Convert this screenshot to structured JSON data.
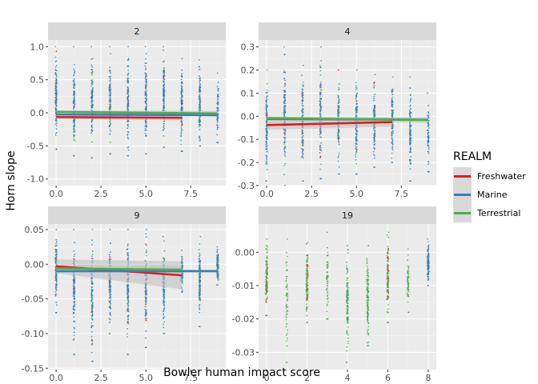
{
  "chart_data": {
    "type": "scatter",
    "facet_variable_values": [
      "2",
      "4",
      "9",
      "19"
    ],
    "xlabel": "Bowler human impact score",
    "ylabel": "Horn slope",
    "legend": {
      "title": "REALM",
      "placement": "right",
      "entries": [
        "Freshwater",
        "Marine",
        "Terrestrial"
      ]
    },
    "colors": {
      "Freshwater": "#e41a1c",
      "Marine": "#377eb8",
      "Terrestrial": "#4daf4a",
      "panel_bg": "#ebebeb",
      "strip_bg": "#d9d9d9",
      "ribbon": "#bfbfbf"
    },
    "facets": [
      {
        "label": "2",
        "xlim": [
          -0.45,
          9.45
        ],
        "ylim": [
          -1.1,
          1.1
        ],
        "xticks": [
          0,
          2.5,
          5,
          7.5
        ],
        "xtick_labels": [
          "0.0",
          "2.5",
          "5.0",
          "7.5"
        ],
        "yticks": [
          -1,
          -0.5,
          0,
          0.5,
          1
        ],
        "ytick_labels": [
          "-1.0",
          "-0.5",
          "0.0",
          "0.5",
          "1.0"
        ],
        "xgrid": [
          0,
          1,
          2,
          3,
          4,
          5,
          6,
          7,
          8,
          9
        ],
        "point_clusters": [
          {
            "x": 0,
            "ymin": -0.55,
            "ymax": 1.0,
            "realms": [
              "Marine",
              "Terrestrial",
              "Freshwater"
            ]
          },
          {
            "x": 1,
            "ymin": -0.65,
            "ymax": 1.0,
            "realms": [
              "Marine",
              "Terrestrial",
              "Freshwater"
            ]
          },
          {
            "x": 2,
            "ymin": -0.68,
            "ymax": 1.0,
            "realms": [
              "Marine",
              "Terrestrial",
              "Freshwater"
            ]
          },
          {
            "x": 3,
            "ymin": -0.62,
            "ymax": 1.0,
            "realms": [
              "Marine",
              "Terrestrial",
              "Freshwater"
            ]
          },
          {
            "x": 4,
            "ymin": -0.65,
            "ymax": 1.0,
            "realms": [
              "Marine",
              "Terrestrial",
              "Freshwater"
            ]
          },
          {
            "x": 5,
            "ymin": -0.62,
            "ymax": 1.0,
            "realms": [
              "Marine",
              "Terrestrial",
              "Freshwater"
            ]
          },
          {
            "x": 6,
            "ymin": -0.52,
            "ymax": 1.0,
            "realms": [
              "Marine",
              "Terrestrial",
              "Freshwater"
            ]
          },
          {
            "x": 7,
            "ymin": -0.58,
            "ymax": 0.82,
            "realms": [
              "Marine",
              "Terrestrial",
              "Freshwater"
            ]
          },
          {
            "x": 8,
            "ymin": -0.5,
            "ymax": 0.8,
            "realms": [
              "Marine",
              "Terrestrial"
            ]
          },
          {
            "x": 9,
            "ymin": -0.45,
            "ymax": 0.6,
            "realms": [
              "Marine"
            ]
          }
        ],
        "fits": [
          {
            "realm": "Freshwater",
            "x": [
              0,
              7
            ],
            "y": [
              -0.065,
              -0.075
            ],
            "se": [
              0.025,
              0.04
            ]
          },
          {
            "realm": "Marine",
            "x": [
              0,
              9
            ],
            "y": [
              -0.025,
              -0.035
            ],
            "se": [
              0.01,
              0.015
            ]
          },
          {
            "realm": "Terrestrial",
            "x": [
              0,
              9
            ],
            "y": [
              0.015,
              -0.01
            ],
            "se": [
              0.02,
              0.04
            ]
          }
        ]
      },
      {
        "label": "4",
        "xlim": [
          -0.45,
          9.45
        ],
        "ylim": [
          -0.3,
          0.33
        ],
        "xticks": [
          0,
          2.5,
          5,
          7.5
        ],
        "xtick_labels": [
          "0.0",
          "2.5",
          "5.0",
          "7.5"
        ],
        "yticks": [
          -0.3,
          -0.2,
          -0.1,
          0,
          0.1,
          0.2,
          0.3
        ],
        "ytick_labels": [
          "-0.3",
          "-0.2",
          "-0.1",
          "0.0",
          "0.1",
          "0.2",
          "0.3"
        ],
        "xgrid": [
          0,
          1,
          2,
          3,
          4,
          5,
          6,
          7,
          8,
          9
        ],
        "point_clusters": [
          {
            "x": 0,
            "ymin": -0.28,
            "ymax": 0.2,
            "realms": [
              "Marine",
              "Terrestrial",
              "Freshwater"
            ]
          },
          {
            "x": 1,
            "ymin": -0.3,
            "ymax": 0.3,
            "realms": [
              "Marine",
              "Terrestrial",
              "Freshwater"
            ]
          },
          {
            "x": 2,
            "ymin": -0.28,
            "ymax": 0.22,
            "realms": [
              "Marine",
              "Terrestrial",
              "Freshwater"
            ]
          },
          {
            "x": 3,
            "ymin": -0.27,
            "ymax": 0.3,
            "realms": [
              "Marine",
              "Terrestrial",
              "Freshwater"
            ]
          },
          {
            "x": 4,
            "ymin": -0.25,
            "ymax": 0.2,
            "realms": [
              "Marine",
              "Terrestrial",
              "Freshwater"
            ]
          },
          {
            "x": 5,
            "ymin": -0.25,
            "ymax": 0.2,
            "realms": [
              "Marine",
              "Terrestrial",
              "Freshwater"
            ]
          },
          {
            "x": 6,
            "ymin": -0.22,
            "ymax": 0.18,
            "realms": [
              "Marine",
              "Terrestrial",
              "Freshwater"
            ]
          },
          {
            "x": 7,
            "ymin": -0.2,
            "ymax": 0.17,
            "realms": [
              "Marine",
              "Terrestrial"
            ]
          },
          {
            "x": 8,
            "ymin": -0.28,
            "ymax": 0.17,
            "realms": [
              "Marine",
              "Terrestrial"
            ]
          },
          {
            "x": 9,
            "ymin": -0.24,
            "ymax": 0.1,
            "realms": [
              "Marine"
            ]
          }
        ],
        "fits": [
          {
            "realm": "Freshwater",
            "x": [
              0,
              7
            ],
            "y": [
              -0.038,
              -0.025
            ],
            "se": [
              0.02,
              0.02
            ]
          },
          {
            "realm": "Marine",
            "x": [
              0,
              9
            ],
            "y": [
              -0.012,
              -0.015
            ],
            "se": [
              0.005,
              0.007
            ]
          },
          {
            "realm": "Terrestrial",
            "x": [
              0,
              9
            ],
            "y": [
              -0.008,
              -0.016
            ],
            "se": [
              0.008,
              0.012
            ]
          }
        ]
      },
      {
        "label": "9",
        "xlim": [
          -0.45,
          9.45
        ],
        "ylim": [
          -0.152,
          0.058
        ],
        "xticks": [
          0,
          2.5,
          5,
          7.5
        ],
        "xtick_labels": [
          "0.0",
          "2.5",
          "5.0",
          "7.5"
        ],
        "yticks": [
          -0.15,
          -0.1,
          -0.05,
          0,
          0.05
        ],
        "ytick_labels": [
          "-0.15",
          "-0.10",
          "-0.05",
          "0.00",
          "0.05"
        ],
        "xgrid": [
          0,
          1,
          2,
          3,
          4,
          5,
          6,
          7,
          8,
          9
        ],
        "point_clusters": [
          {
            "x": 0,
            "ymin": -0.07,
            "ymax": 0.05,
            "realms": [
              "Marine",
              "Terrestrial",
              "Freshwater"
            ]
          },
          {
            "x": 1,
            "ymin": -0.13,
            "ymax": 0.05,
            "realms": [
              "Marine",
              "Terrestrial",
              "Freshwater"
            ]
          },
          {
            "x": 2,
            "ymin": -0.14,
            "ymax": 0.05,
            "realms": [
              "Marine",
              "Terrestrial",
              "Freshwater"
            ]
          },
          {
            "x": 3,
            "ymin": -0.1,
            "ymax": 0.05,
            "realms": [
              "Marine",
              "Terrestrial",
              "Freshwater"
            ]
          },
          {
            "x": 4,
            "ymin": -0.13,
            "ymax": 0.05,
            "realms": [
              "Marine",
              "Terrestrial",
              "Freshwater"
            ]
          },
          {
            "x": 5,
            "ymin": -0.12,
            "ymax": 0.05,
            "realms": [
              "Marine",
              "Terrestrial",
              "Freshwater"
            ]
          },
          {
            "x": 6,
            "ymin": -0.1,
            "ymax": 0.04,
            "realms": [
              "Marine",
              "Terrestrial"
            ]
          },
          {
            "x": 7,
            "ymin": -0.04,
            "ymax": 0.02,
            "realms": [
              "Marine",
              "Terrestrial"
            ]
          },
          {
            "x": 8,
            "ymin": -0.09,
            "ymax": 0.04,
            "realms": [
              "Marine",
              "Terrestrial"
            ]
          },
          {
            "x": 9,
            "ymin": -0.03,
            "ymax": 0.025,
            "realms": [
              "Marine",
              "Terrestrial"
            ]
          }
        ],
        "fits": [
          {
            "realm": "Freshwater",
            "x": [
              0,
              7
            ],
            "y": [
              -0.003,
              -0.016
            ],
            "se": [
              0.01,
              0.02
            ]
          },
          {
            "realm": "Marine",
            "x": [
              0,
              9
            ],
            "y": [
              -0.01,
              -0.01
            ],
            "se": [
              0.002,
              0.002
            ]
          },
          {
            "realm": "Terrestrial",
            "x": [
              0,
              7
            ],
            "y": [
              -0.006,
              -0.008
            ],
            "se": [
              0.004,
              0.005
            ]
          }
        ]
      },
      {
        "label": "19",
        "xlim": [
          -0.4,
          8.4
        ],
        "ylim": [
          -0.0352,
          0.0085
        ],
        "xticks": [
          0,
          2,
          4,
          6,
          8
        ],
        "xtick_labels": [
          "0",
          "2",
          "4",
          "6",
          "8"
        ],
        "yticks": [
          -0.03,
          -0.02,
          -0.01,
          0
        ],
        "ytick_labels": [
          "-0.03",
          "-0.02",
          "-0.01",
          "0.00"
        ],
        "xgrid": [
          0,
          1,
          2,
          3,
          4,
          5,
          6,
          7,
          8
        ],
        "point_clusters": [
          {
            "x": 0,
            "ymin": -0.019,
            "ymax": 0.004,
            "realms": [
              "Terrestrial",
              "Freshwater"
            ]
          },
          {
            "x": 1,
            "ymin": -0.033,
            "ymax": 0.004,
            "realms": [
              "Terrestrial"
            ]
          },
          {
            "x": 2,
            "ymin": -0.021,
            "ymax": 0.003,
            "realms": [
              "Terrestrial",
              "Freshwater"
            ]
          },
          {
            "x": 3,
            "ymin": -0.02,
            "ymax": 0.006,
            "realms": [
              "Terrestrial"
            ]
          },
          {
            "x": 4,
            "ymin": -0.033,
            "ymax": 0.002,
            "realms": [
              "Terrestrial",
              "Marine"
            ]
          },
          {
            "x": 5,
            "ymin": -0.028,
            "ymax": 0.002,
            "realms": [
              "Terrestrial",
              "Marine"
            ]
          },
          {
            "x": 6,
            "ymin": -0.021,
            "ymax": 0.006,
            "realms": [
              "Terrestrial",
              "Freshwater"
            ]
          },
          {
            "x": 7,
            "ymin": -0.018,
            "ymax": 0.001,
            "realms": [
              "Terrestrial"
            ]
          },
          {
            "x": 8,
            "ymin": -0.01,
            "ymax": 0.004,
            "realms": [
              "Marine",
              "Terrestrial"
            ]
          }
        ],
        "fits": []
      }
    ]
  }
}
